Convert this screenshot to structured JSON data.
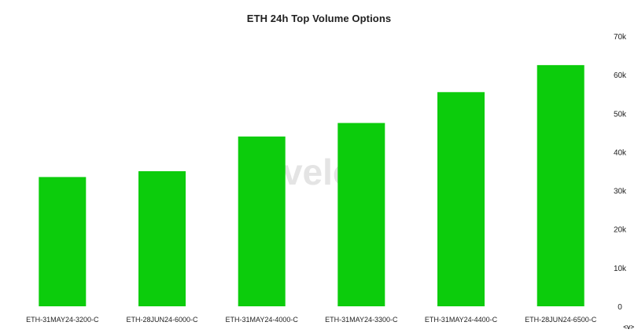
{
  "chart_data": {
    "type": "bar",
    "title": "ETH 24h Top Volume Options",
    "categories": [
      "ETH-31MAY24-3200-C",
      "ETH-28JUN24-6000-C",
      "ETH-31MAY24-4000-C",
      "ETH-31MAY24-3300-C",
      "ETH-31MAY24-4400-C",
      "ETH-28JUN24-6500-C"
    ],
    "values": [
      33500,
      35000,
      44000,
      47500,
      55500,
      62500
    ],
    "xlabel": "",
    "ylabel": "",
    "ylim": [
      0,
      70000
    ],
    "yticks": [
      {
        "value": 0,
        "label": "0"
      },
      {
        "value": 10000,
        "label": "10k"
      },
      {
        "value": 20000,
        "label": "20k"
      },
      {
        "value": 30000,
        "label": "30k"
      },
      {
        "value": 40000,
        "label": "40k"
      },
      {
        "value": 50000,
        "label": "50k"
      },
      {
        "value": 60000,
        "label": "60k"
      },
      {
        "value": 70000,
        "label": "70k"
      }
    ],
    "y_axis_side": "right",
    "grid": false,
    "legend": "none",
    "bar_color": "#0ccc0c",
    "watermark": "velo",
    "watermark_color": "#e2e2e2"
  },
  "corner_label": "<v>"
}
